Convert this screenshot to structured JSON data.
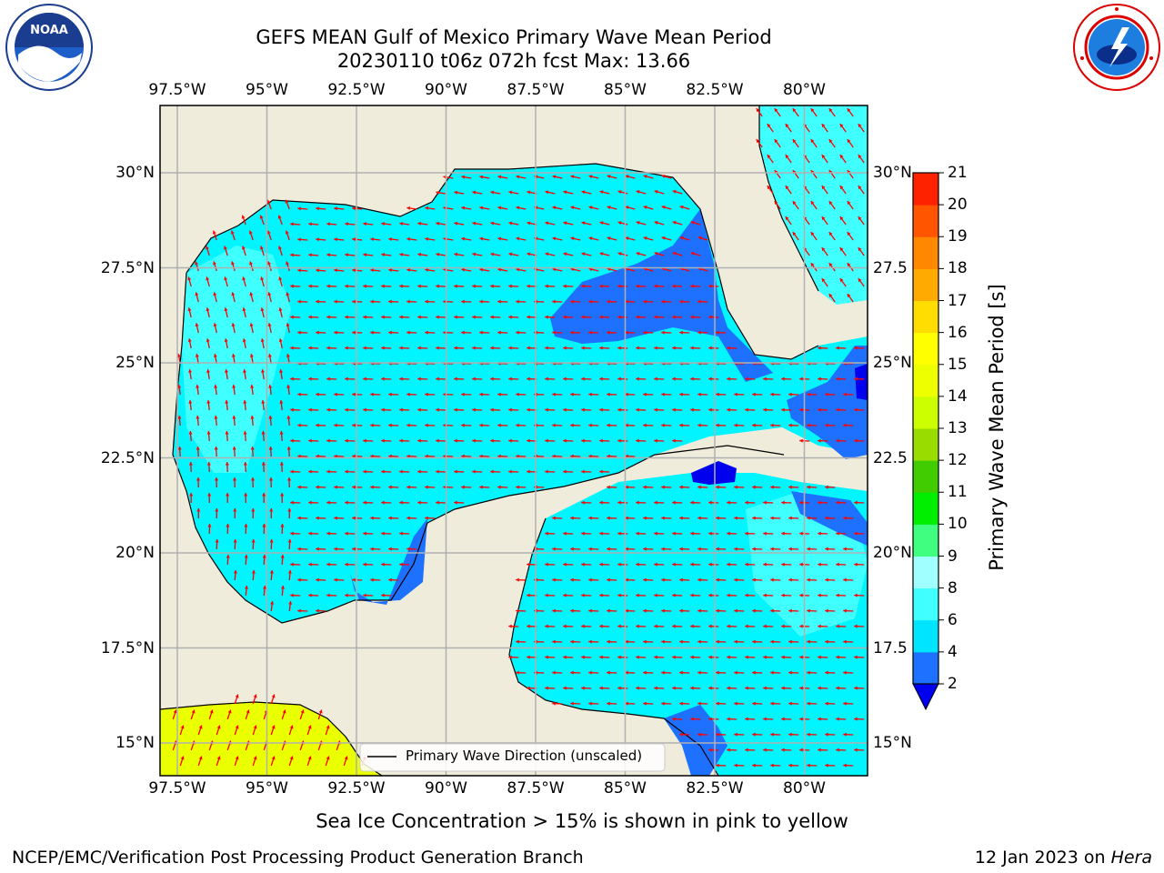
{
  "header": {
    "title_line1": "GEFS MEAN Gulf of Mexico Primary Wave Mean Period",
    "title_line2": "20230110 t06z 072h fcst   Max: 13.66"
  },
  "logos": {
    "noaa_text": "NOAA",
    "noaa_ring_text": "NATIONAL OCEANIC AND ATMOSPHERIC ADMINISTRATION · U.S. DEPARTMENT OF COMMERCE",
    "nws_ring_text": "NATIONAL WEATHER SERVICE"
  },
  "axes": {
    "lon_labels": [
      "97.5°W",
      "95°W",
      "92.5°W",
      "90°W",
      "87.5°W",
      "85°W",
      "82.5°W",
      "80°W"
    ],
    "lat_labels_left": [
      "30°N",
      "27.5°N",
      "25°N",
      "22.5°N",
      "20°N",
      "17.5°N",
      "15°N"
    ],
    "lat_labels_right": [
      "30°N",
      "27.5",
      "25°N",
      "22.5",
      "20°N",
      "17.5",
      "15°N"
    ]
  },
  "legend": {
    "label": "Primary Wave Direction (unscaled)"
  },
  "colorbar": {
    "label": "Primary Wave Mean Period [s]",
    "ticks": [
      "2",
      "4",
      "6",
      "8",
      "9",
      "10",
      "11",
      "12",
      "13",
      "14",
      "15",
      "16",
      "17",
      "18",
      "19",
      "20",
      "21"
    ],
    "colors": [
      "#0000ee",
      "#1e70ff",
      "#00e5ff",
      "#40ffff",
      "#a0ffff",
      "#40ff80",
      "#00ee00",
      "#40cc00",
      "#99dd00",
      "#ccff00",
      "#eeff00",
      "#ffff00",
      "#ffdd00",
      "#ffaa00",
      "#ff8800",
      "#ff5500",
      "#ff2200",
      "#ff0000"
    ]
  },
  "footer": {
    "ice_note": "Sea Ice Concentration > 15% is shown in pink to yellow",
    "branch": "NCEP/EMC/Verification Post Processing Product Generation Branch",
    "date": "12 Jan 2023 on",
    "host": "Hera"
  },
  "colors": {
    "land": "#efecdc",
    "sea_main": "#00f5ff",
    "sea_light": "#40ffff",
    "sea_blue": "#1e70ff",
    "sea_deep": "#0000ee",
    "ice_yellow": "#eaff00",
    "arrow": "#ff0000"
  }
}
